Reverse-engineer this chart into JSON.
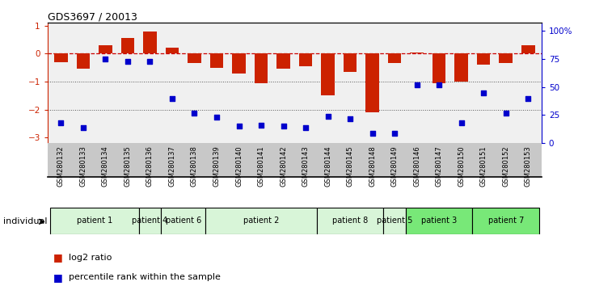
{
  "title": "GDS3697 / 20013",
  "samples": [
    "GSM280132",
    "GSM280133",
    "GSM280134",
    "GSM280135",
    "GSM280136",
    "GSM280137",
    "GSM280138",
    "GSM280139",
    "GSM280140",
    "GSM280141",
    "GSM280142",
    "GSM280143",
    "GSM280144",
    "GSM280145",
    "GSM280148",
    "GSM280149",
    "GSM280146",
    "GSM280147",
    "GSM280150",
    "GSM280151",
    "GSM280152",
    "GSM280153"
  ],
  "log2_ratio": [
    -0.3,
    -0.55,
    0.3,
    0.55,
    0.8,
    0.2,
    -0.35,
    -0.5,
    -0.7,
    -1.05,
    -0.55,
    -0.45,
    -1.5,
    -0.65,
    -2.1,
    -0.35,
    0.05,
    -1.05,
    -1.0,
    -0.4,
    -0.35,
    0.3
  ],
  "percentile_rank": [
    13,
    9,
    70,
    68,
    68,
    35,
    22,
    18,
    10,
    11,
    10,
    9,
    19,
    17,
    4,
    4,
    47,
    47,
    13,
    40,
    22,
    35
  ],
  "patients": [
    {
      "label": "patient 1",
      "indices": [
        0,
        1,
        2,
        3
      ],
      "color": "#d8f5d8"
    },
    {
      "label": "patient 4",
      "indices": [
        4
      ],
      "color": "#d8f5d8"
    },
    {
      "label": "patient 6",
      "indices": [
        5,
        6
      ],
      "color": "#d8f5d8"
    },
    {
      "label": "patient 2",
      "indices": [
        7,
        8,
        9,
        10,
        11
      ],
      "color": "#d8f5d8"
    },
    {
      "label": "patient 8",
      "indices": [
        12,
        13,
        14
      ],
      "color": "#d8f5d8"
    },
    {
      "label": "patient 5",
      "indices": [
        15
      ],
      "color": "#d8f5d8"
    },
    {
      "label": "patient 3",
      "indices": [
        16,
        17,
        18
      ],
      "color": "#78e878"
    },
    {
      "label": "patient 7",
      "indices": [
        19,
        20,
        21
      ],
      "color": "#78e878"
    }
  ],
  "bar_color": "#cc2200",
  "scatter_color": "#0000cc",
  "zero_line_color": "#cc0000",
  "dotted_line_color": "#555555",
  "ylim_left": [
    -3.2,
    1.1
  ],
  "ylim_right": [
    0,
    107
  ],
  "right_ticks": [
    0,
    25,
    50,
    75,
    100
  ],
  "right_tick_labels": [
    "0",
    "25",
    "50",
    "75",
    "100%"
  ],
  "left_ticks": [
    -3,
    -2,
    -1,
    0,
    1
  ],
  "bg_color": "#ffffff",
  "plot_bg": "#f0f0f0",
  "sample_bg": "#c8c8c8"
}
